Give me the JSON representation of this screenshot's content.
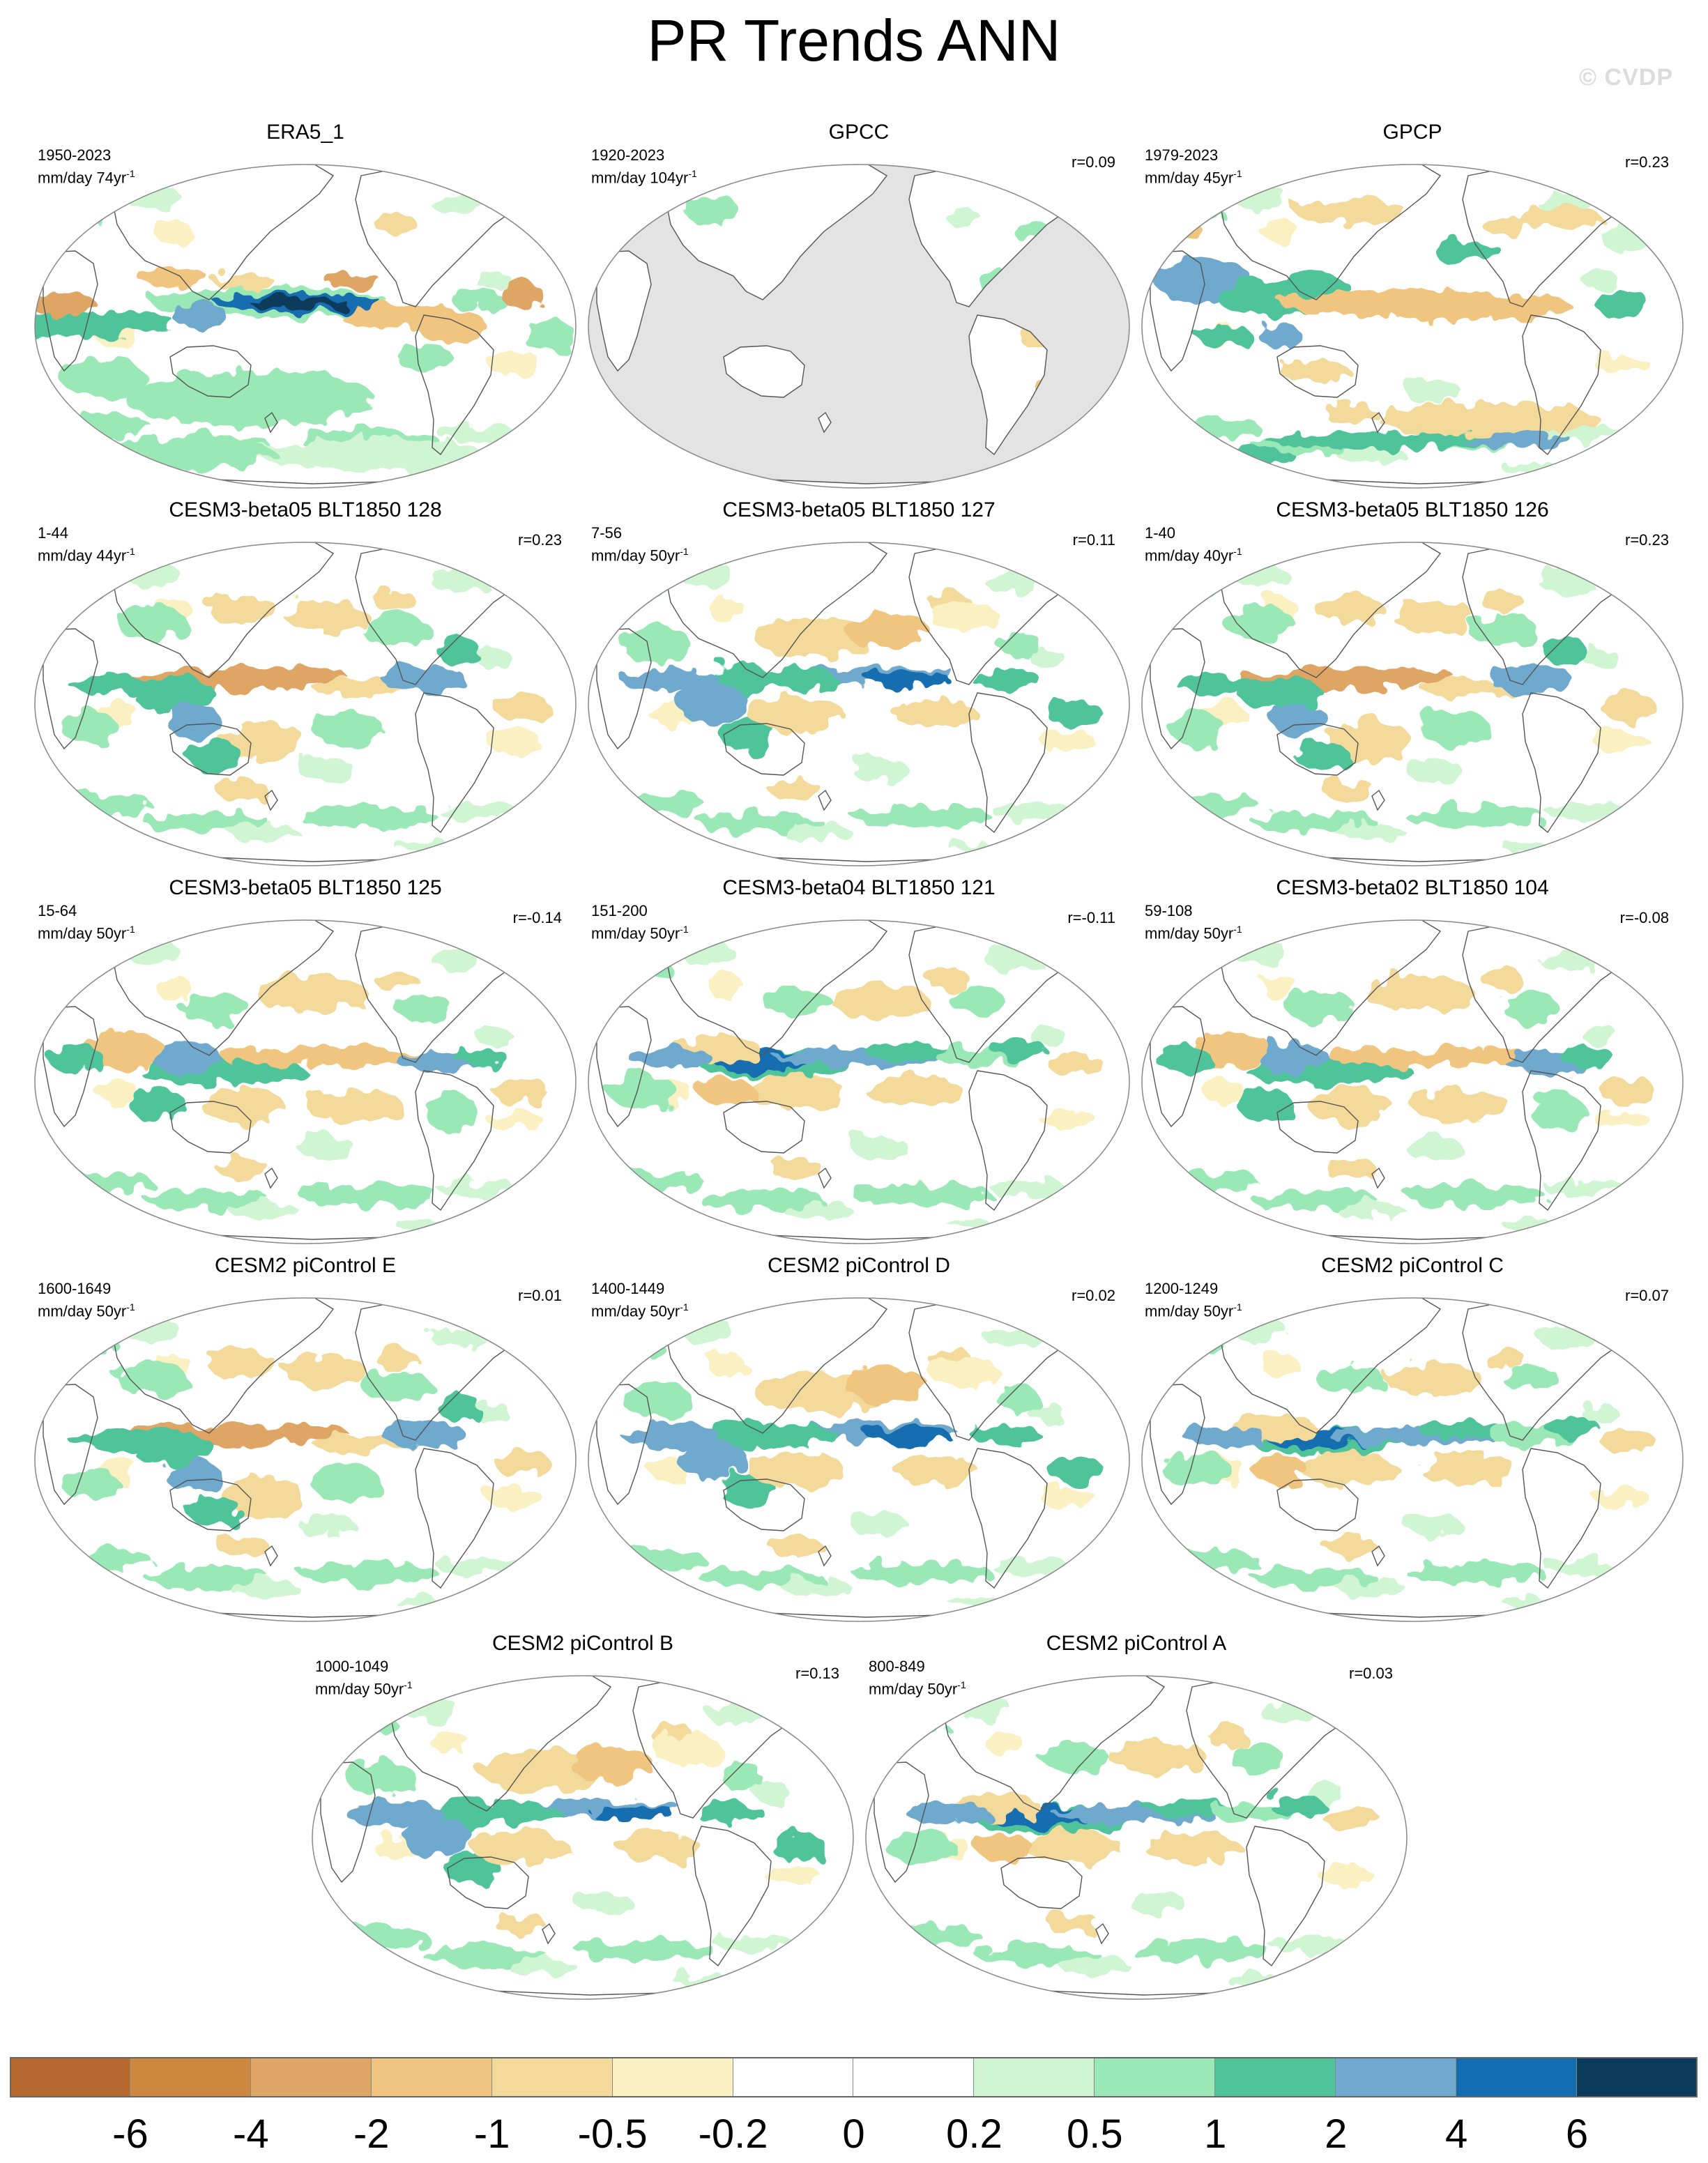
{
  "title": "PR Trends ANN",
  "watermark": "© CVDP",
  "panels": [
    {
      "name": "ERA5_1",
      "period": "1950-2023",
      "units": "mm/day 74yr",
      "unit_exp": "-1",
      "r": "",
      "pattern": "era5",
      "land_masked": false
    },
    {
      "name": "GPCC",
      "period": "1920-2023",
      "units": "mm/day 104yr",
      "unit_exp": "-1",
      "r": "r=0.09",
      "pattern": "gpcc",
      "land_masked": true
    },
    {
      "name": "GPCP",
      "period": "1979-2023",
      "units": "mm/day 45yr",
      "unit_exp": "-1",
      "r": "r=0.23",
      "pattern": "gpcp",
      "land_masked": false
    },
    {
      "name": "CESM3-beta05 BLT1850 128",
      "period": "1-44",
      "units": "mm/day 44yr",
      "unit_exp": "-1",
      "r": "r=0.23",
      "pattern": "dry-cp",
      "land_masked": false
    },
    {
      "name": "CESM3-beta05 BLT1850 127",
      "period": "7-56",
      "units": "mm/day 50yr",
      "unit_exp": "-1",
      "r": "r=0.11",
      "pattern": "wet-cp",
      "land_masked": false
    },
    {
      "name": "CESM3-beta05 BLT1850 126",
      "period": "1-40",
      "units": "mm/day 40yr",
      "unit_exp": "-1",
      "r": "r=0.23",
      "pattern": "dry-cp",
      "land_masked": false
    },
    {
      "name": "CESM3-beta05 BLT1850 125",
      "period": "15-64",
      "units": "mm/day 50yr",
      "unit_exp": "-1",
      "r": "r=-0.14",
      "pattern": "wet-wp",
      "land_masked": false
    },
    {
      "name": "CESM3-beta04 BLT1850 121",
      "period": "151-200",
      "units": "mm/day 50yr",
      "unit_exp": "-1",
      "r": "r=-0.11",
      "pattern": "wet-wp-strong",
      "land_masked": false
    },
    {
      "name": "CESM3-beta02 BLT1850 104",
      "period": "59-108",
      "units": "mm/day 50yr",
      "unit_exp": "-1",
      "r": "r=-0.08",
      "pattern": "wet-wp",
      "land_masked": false
    },
    {
      "name": "CESM2 piControl E",
      "period": "1600-1649",
      "units": "mm/day 50yr",
      "unit_exp": "-1",
      "r": "r=0.01",
      "pattern": "dry-cp",
      "land_masked": false
    },
    {
      "name": "CESM2 piControl D",
      "period": "1400-1449",
      "units": "mm/day 50yr",
      "unit_exp": "-1",
      "r": "r=0.02",
      "pattern": "wet-cp",
      "land_masked": false
    },
    {
      "name": "CESM2 piControl C",
      "period": "1200-1249",
      "units": "mm/day 50yr",
      "unit_exp": "-1",
      "r": "r=0.07",
      "pattern": "wet-wp-strong",
      "land_masked": false
    },
    {
      "name": "CESM2 piControl B",
      "period": "1000-1049",
      "units": "mm/day 50yr",
      "unit_exp": "-1",
      "r": "r=0.13",
      "pattern": "wet-cp",
      "land_masked": false
    },
    {
      "name": "CESM2 piControl A",
      "period": "800-849",
      "units": "mm/day 50yr",
      "unit_exp": "-1",
      "r": "r=0.03",
      "pattern": "wet-wp-strong",
      "land_masked": false
    }
  ],
  "colorbar": {
    "labels": [
      "-6",
      "-4",
      "-2",
      "-1",
      "-0.5",
      "-0.2",
      "0",
      "0.2",
      "0.5",
      "1",
      "2",
      "4",
      "6"
    ],
    "colors": [
      "#b5692f",
      "#cd873f",
      "#dea565",
      "#efc57f",
      "#f3d99a",
      "#fbf0c2",
      "#ffffff",
      "#ffffff",
      "#cff5d2",
      "#99e8b5",
      "#4fc49b",
      "#6fa9ce",
      "#126db0",
      "#0b3b5c"
    ]
  },
  "land_mask_color": "#e3e3e3",
  "coast_color": "#555555"
}
